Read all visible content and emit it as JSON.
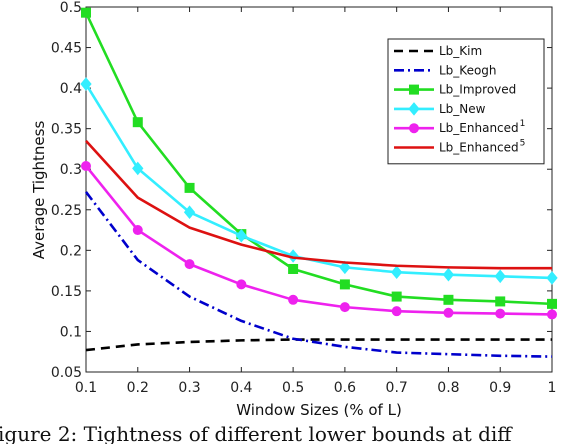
{
  "chart_data": {
    "type": "line",
    "xlabel": "Window Sizes (% of L)",
    "ylabel": "Average Tightness",
    "xlim": [
      0.1,
      1
    ],
    "ylim": [
      0.05,
      0.5
    ],
    "xticks": [
      "0.1",
      "0.2",
      "0.3",
      "0.4",
      "0.5",
      "0.6",
      "0.7",
      "0.8",
      "0.9",
      "1"
    ],
    "yticks": [
      "0.05",
      "0.1",
      "0.15",
      "0.2",
      "0.25",
      "0.3",
      "0.35",
      "0.4",
      "0.45",
      "0.5"
    ],
    "grid": false,
    "legend_position": "top-right",
    "x": [
      0.1,
      0.2,
      0.3,
      0.4,
      0.5,
      0.6,
      0.7,
      0.8,
      0.9,
      1.0
    ],
    "series": [
      {
        "name": "Lb_Kim",
        "superscript": "",
        "color": "#000000",
        "style": "dashed",
        "marker": "none",
        "values": [
          0.077,
          0.084,
          0.087,
          0.089,
          0.09,
          0.09,
          0.09,
          0.09,
          0.09,
          0.09
        ]
      },
      {
        "name": "Lb_Keogh",
        "superscript": "",
        "color": "#0000cc",
        "style": "dashdot",
        "marker": "none",
        "values": [
          0.272,
          0.188,
          0.143,
          0.113,
          0.091,
          0.081,
          0.074,
          0.072,
          0.07,
          0.069
        ]
      },
      {
        "name": "Lb_Improved",
        "superscript": "",
        "color": "#22dd22",
        "style": "solid",
        "marker": "square",
        "values": [
          0.493,
          0.358,
          0.277,
          0.22,
          0.177,
          0.158,
          0.143,
          0.139,
          0.137,
          0.134
        ]
      },
      {
        "name": "Lb_New",
        "superscript": "",
        "color": "#33eeff",
        "style": "solid",
        "marker": "diamond",
        "values": [
          0.405,
          0.301,
          0.247,
          0.218,
          0.193,
          0.179,
          0.173,
          0.17,
          0.168,
          0.166
        ]
      },
      {
        "name": "Lb_Enhanced",
        "superscript": "1",
        "color": "#ee22ee",
        "style": "solid",
        "marker": "circle",
        "values": [
          0.304,
          0.225,
          0.183,
          0.158,
          0.139,
          0.13,
          0.125,
          0.123,
          0.122,
          0.121
        ]
      },
      {
        "name": "Lb_Enhanced",
        "superscript": "5",
        "color": "#dd1111",
        "style": "solid",
        "marker": "none",
        "values": [
          0.335,
          0.265,
          0.228,
          0.207,
          0.191,
          0.185,
          0.181,
          0.179,
          0.178,
          0.178
        ]
      }
    ]
  },
  "caption": "igure 2: Tightness of different lower bounds at diff"
}
